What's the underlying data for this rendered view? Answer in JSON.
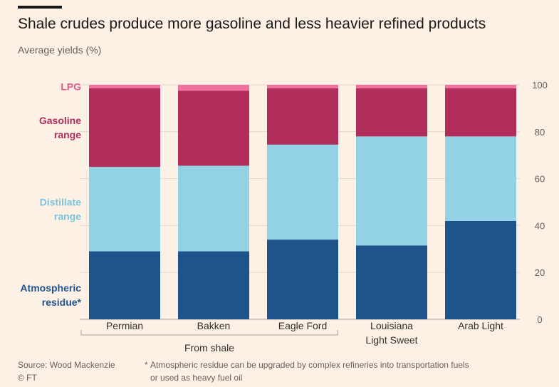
{
  "header": {
    "title": "Shale crudes produce more gasoline and less heavier refined products",
    "subtitle": "Average yields (%)"
  },
  "chart_data": {
    "type": "bar",
    "stacked": true,
    "categories": [
      "Permian",
      "Bakken",
      "Eagle Ford",
      "Louisiana Light Sweet",
      "Arab Light"
    ],
    "category_lines": [
      [
        "Permian"
      ],
      [
        "Bakken"
      ],
      [
        "Eagle Ford"
      ],
      [
        "Louisiana",
        "Light Sweet"
      ],
      [
        "Arab Light"
      ]
    ],
    "group_label": "From shale",
    "series": [
      {
        "name": "Atmospheric residue*",
        "label_lines": [
          "Atmospheric",
          "residue*"
        ],
        "color": "#1f538c",
        "values": [
          29,
          29,
          34,
          31.5,
          42
        ]
      },
      {
        "name": "Distillate range",
        "label_lines": [
          "Distillate",
          "range"
        ],
        "color": "#93d2e4",
        "values": [
          36,
          36.5,
          40.5,
          46.5,
          36
        ]
      },
      {
        "name": "Gasoline range",
        "label_lines": [
          "Gasoline",
          "range"
        ],
        "color": "#b22e5a",
        "values": [
          33.5,
          32,
          24,
          20.5,
          20.5
        ]
      },
      {
        "name": "LPG",
        "label_lines": [
          "LPG"
        ],
        "color": "#f0709e",
        "values": [
          1.5,
          2.5,
          1.5,
          1.5,
          1.5
        ]
      }
    ],
    "series_label_colors": [
      "#1f538c",
      "#7cc3dc",
      "#b22e5a",
      "#e85a8c"
    ],
    "ylim": [
      0,
      100
    ],
    "yticks": [
      0,
      20,
      40,
      60,
      80,
      100
    ],
    "grid": true,
    "y_axis_side": "right",
    "legend_placement": "left"
  },
  "footer": {
    "source": "Source: Wood Mackenzie",
    "copyright": "© FT",
    "footnote_mark": "*",
    "footnote_line1": "Atmospheric residue can be upgraded by complex refineries into transportation fuels",
    "footnote_line2": "or used as heavy fuel oil"
  }
}
